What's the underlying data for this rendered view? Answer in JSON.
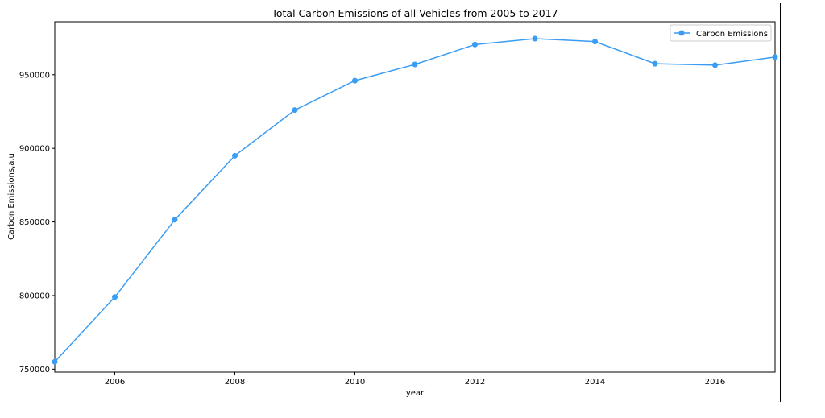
{
  "chart_data": {
    "type": "line",
    "title": "Total Carbon Emissions of all Vehicles from 2005 to 2017",
    "xlabel": "year",
    "ylabel": "Carbon Emissions,a.u",
    "xlim": [
      2005,
      2017
    ],
    "ylim": [
      748000,
      986000
    ],
    "x_ticks": [
      "2006",
      "2008",
      "2010",
      "2012",
      "2014",
      "2016"
    ],
    "y_ticks": [
      "750000",
      "800000",
      "850000",
      "900000",
      "950000"
    ],
    "grid": false,
    "legend_position": "top-right",
    "series": [
      {
        "name": "Carbon Emissions",
        "color": "#3a9cf2",
        "marker": "circle",
        "x": [
          2005,
          2006,
          2007,
          2008,
          2009,
          2010,
          2011,
          2012,
          2013,
          2014,
          2015,
          2016,
          2017
        ],
        "y": [
          755000,
          799000,
          851500,
          895000,
          926000,
          946000,
          957000,
          970500,
          974500,
          972500,
          957500,
          956500,
          962000
        ]
      }
    ]
  }
}
